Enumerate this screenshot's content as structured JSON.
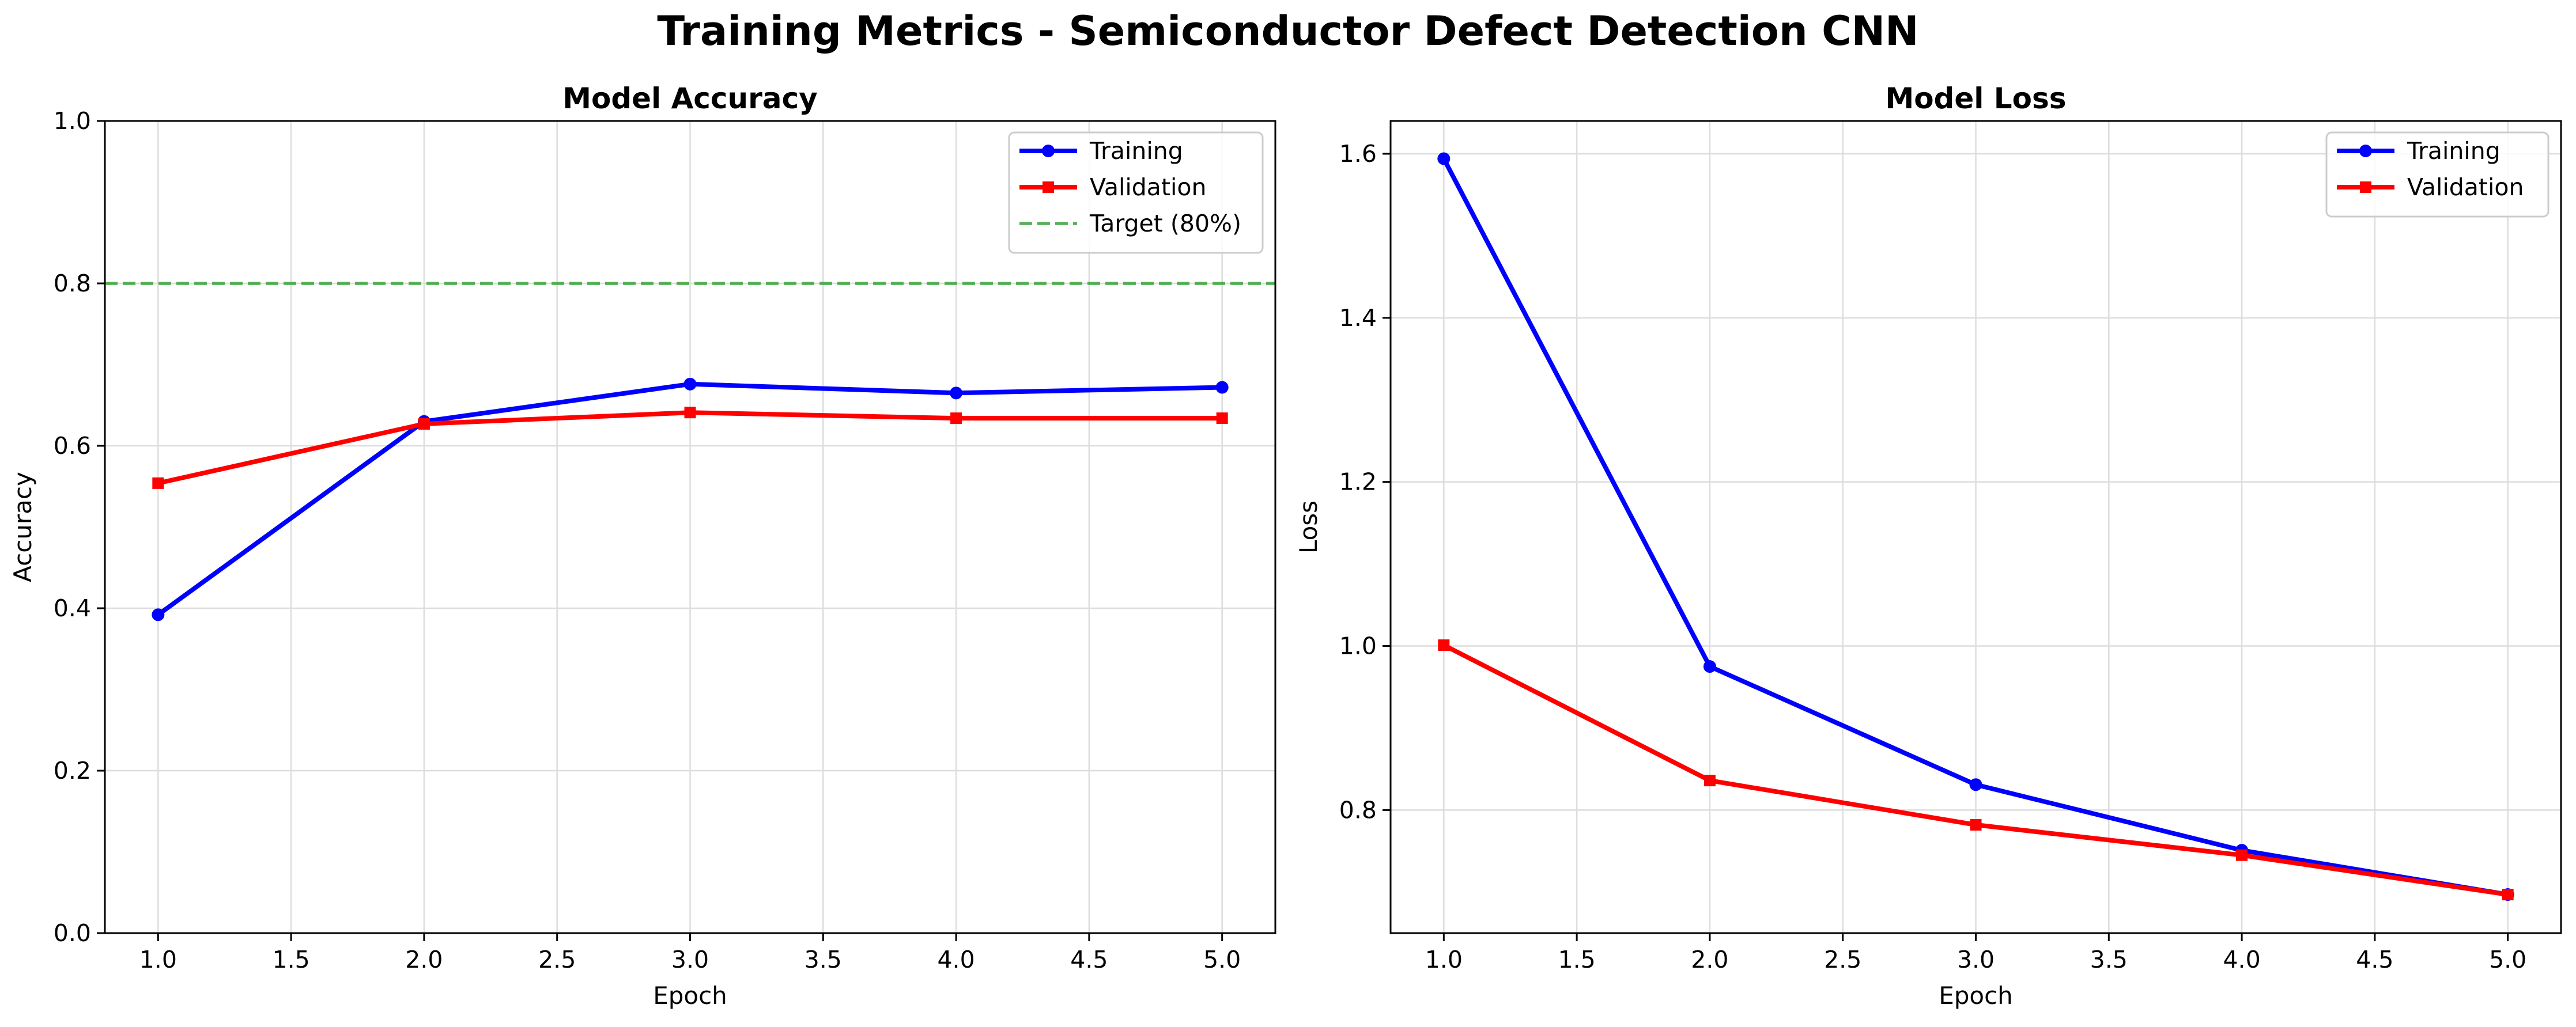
{
  "figure_title": "Training Metrics - Semiconductor Defect Detection CNN",
  "chart_data": [
    {
      "type": "line",
      "title": "Model Accuracy",
      "xlabel": "Epoch",
      "ylabel": "Accuracy",
      "x": [
        1,
        2,
        3,
        4,
        5
      ],
      "xlim": [
        0.8,
        5.2
      ],
      "ylim": [
        0.0,
        1.0
      ],
      "xticks": [
        "1.0",
        "1.5",
        "2.0",
        "2.5",
        "3.0",
        "3.5",
        "4.0",
        "4.5",
        "5.0"
      ],
      "yticks": [
        "0.0",
        "0.2",
        "0.4",
        "0.6",
        "0.8",
        "1.0"
      ],
      "grid": true,
      "legend_position": "top-right",
      "series": [
        {
          "name": "Training",
          "values": [
            0.392,
            0.63,
            0.676,
            0.665,
            0.672
          ],
          "color": "#0000ff",
          "marker": "circle"
        },
        {
          "name": "Validation",
          "values": [
            0.554,
            0.627,
            0.641,
            0.634,
            0.634
          ],
          "color": "#ff0000",
          "marker": "square"
        }
      ],
      "reference_lines": [
        {
          "name": "Target (80%)",
          "y": 0.8,
          "color": "#2ca02c",
          "style": "dashed"
        }
      ]
    },
    {
      "type": "line",
      "title": "Model Loss",
      "xlabel": "Epoch",
      "ylabel": "Loss",
      "x": [
        1,
        2,
        3,
        4,
        5
      ],
      "xlim": [
        0.8,
        5.2
      ],
      "ylim": [
        0.65,
        1.64
      ],
      "xticks": [
        "1.0",
        "1.5",
        "2.0",
        "2.5",
        "3.0",
        "3.5",
        "4.0",
        "4.5",
        "5.0"
      ],
      "yticks": [
        "0.8",
        "1.0",
        "1.2",
        "1.4",
        "1.6"
      ],
      "grid": true,
      "legend_position": "top-right",
      "series": [
        {
          "name": "Training",
          "values": [
            1.594,
            0.975,
            0.831,
            0.751,
            0.697
          ],
          "color": "#0000ff",
          "marker": "circle"
        },
        {
          "name": "Validation",
          "values": [
            1.001,
            0.836,
            0.782,
            0.745,
            0.697
          ],
          "color": "#ff0000",
          "marker": "square"
        }
      ],
      "reference_lines": []
    }
  ]
}
